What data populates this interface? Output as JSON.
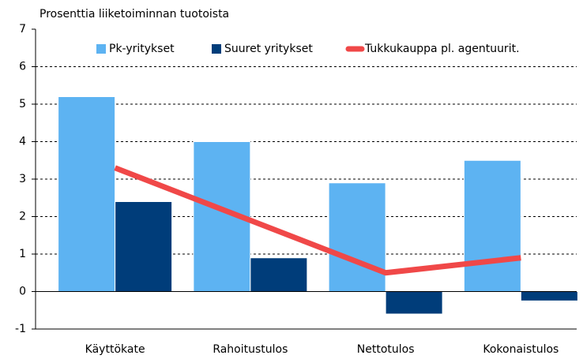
{
  "chart_data": {
    "type": "bar",
    "title": "Prosenttia liiketoiminnan tuotoista",
    "categories": [
      "Käyttökate",
      "Rahoitustulos",
      "Nettotulos",
      "Kokonaistulos"
    ],
    "series": [
      {
        "name": "Pk-yritykset",
        "type": "bar",
        "color": "#5db3f2",
        "values": [
          5.2,
          4.0,
          2.9,
          3.5
        ]
      },
      {
        "name": "Suuret yritykset",
        "type": "bar",
        "color": "#003d7a",
        "values": [
          2.4,
          0.9,
          -0.6,
          -0.25
        ]
      },
      {
        "name": "Tukkukauppa pl. agentuurit.",
        "type": "line",
        "color": "#f04848",
        "values": [
          3.3,
          1.9,
          0.5,
          0.9
        ]
      }
    ],
    "ylim": [
      -1,
      7
    ],
    "yticks": [
      -1,
      0,
      1,
      2,
      3,
      4,
      5,
      6,
      7
    ],
    "grid": true,
    "legend": "top-right"
  }
}
